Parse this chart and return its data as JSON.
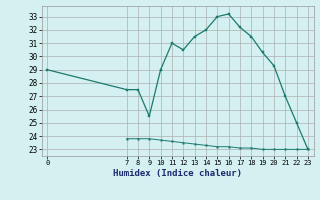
{
  "line1_x": [
    0,
    7,
    8,
    9,
    10,
    11,
    12,
    13,
    14,
    15,
    16,
    17,
    18,
    19,
    20,
    21,
    22,
    23
  ],
  "line1_y": [
    29.0,
    27.5,
    27.5,
    25.5,
    29.0,
    31.0,
    30.5,
    31.5,
    32.0,
    33.0,
    33.2,
    32.2,
    31.5,
    30.3,
    29.3,
    27.0,
    25.0,
    23.0
  ],
  "line2_x": [
    7,
    8,
    9,
    10,
    11,
    12,
    13,
    14,
    15,
    16,
    17,
    18,
    19,
    20,
    21,
    22,
    23
  ],
  "line2_y": [
    23.8,
    23.8,
    23.8,
    23.7,
    23.6,
    23.5,
    23.4,
    23.3,
    23.2,
    23.2,
    23.1,
    23.1,
    23.0,
    23.0,
    23.0,
    23.0,
    23.0
  ],
  "line_color": "#1a7a6e",
  "bg_color": "#d4f0f0",
  "grid_color_major": "#b0b0b0",
  "grid_color_minor": "#d0d0d0",
  "xlabel": "Humidex (Indice chaleur)",
  "ylim": [
    22.5,
    33.8
  ],
  "yticks": [
    23,
    24,
    25,
    26,
    27,
    28,
    29,
    30,
    31,
    32,
    33
  ],
  "xticks": [
    0,
    7,
    8,
    9,
    10,
    11,
    12,
    13,
    14,
    15,
    16,
    17,
    18,
    19,
    20,
    21,
    22,
    23
  ],
  "xlim": [
    -0.5,
    23.5
  ]
}
